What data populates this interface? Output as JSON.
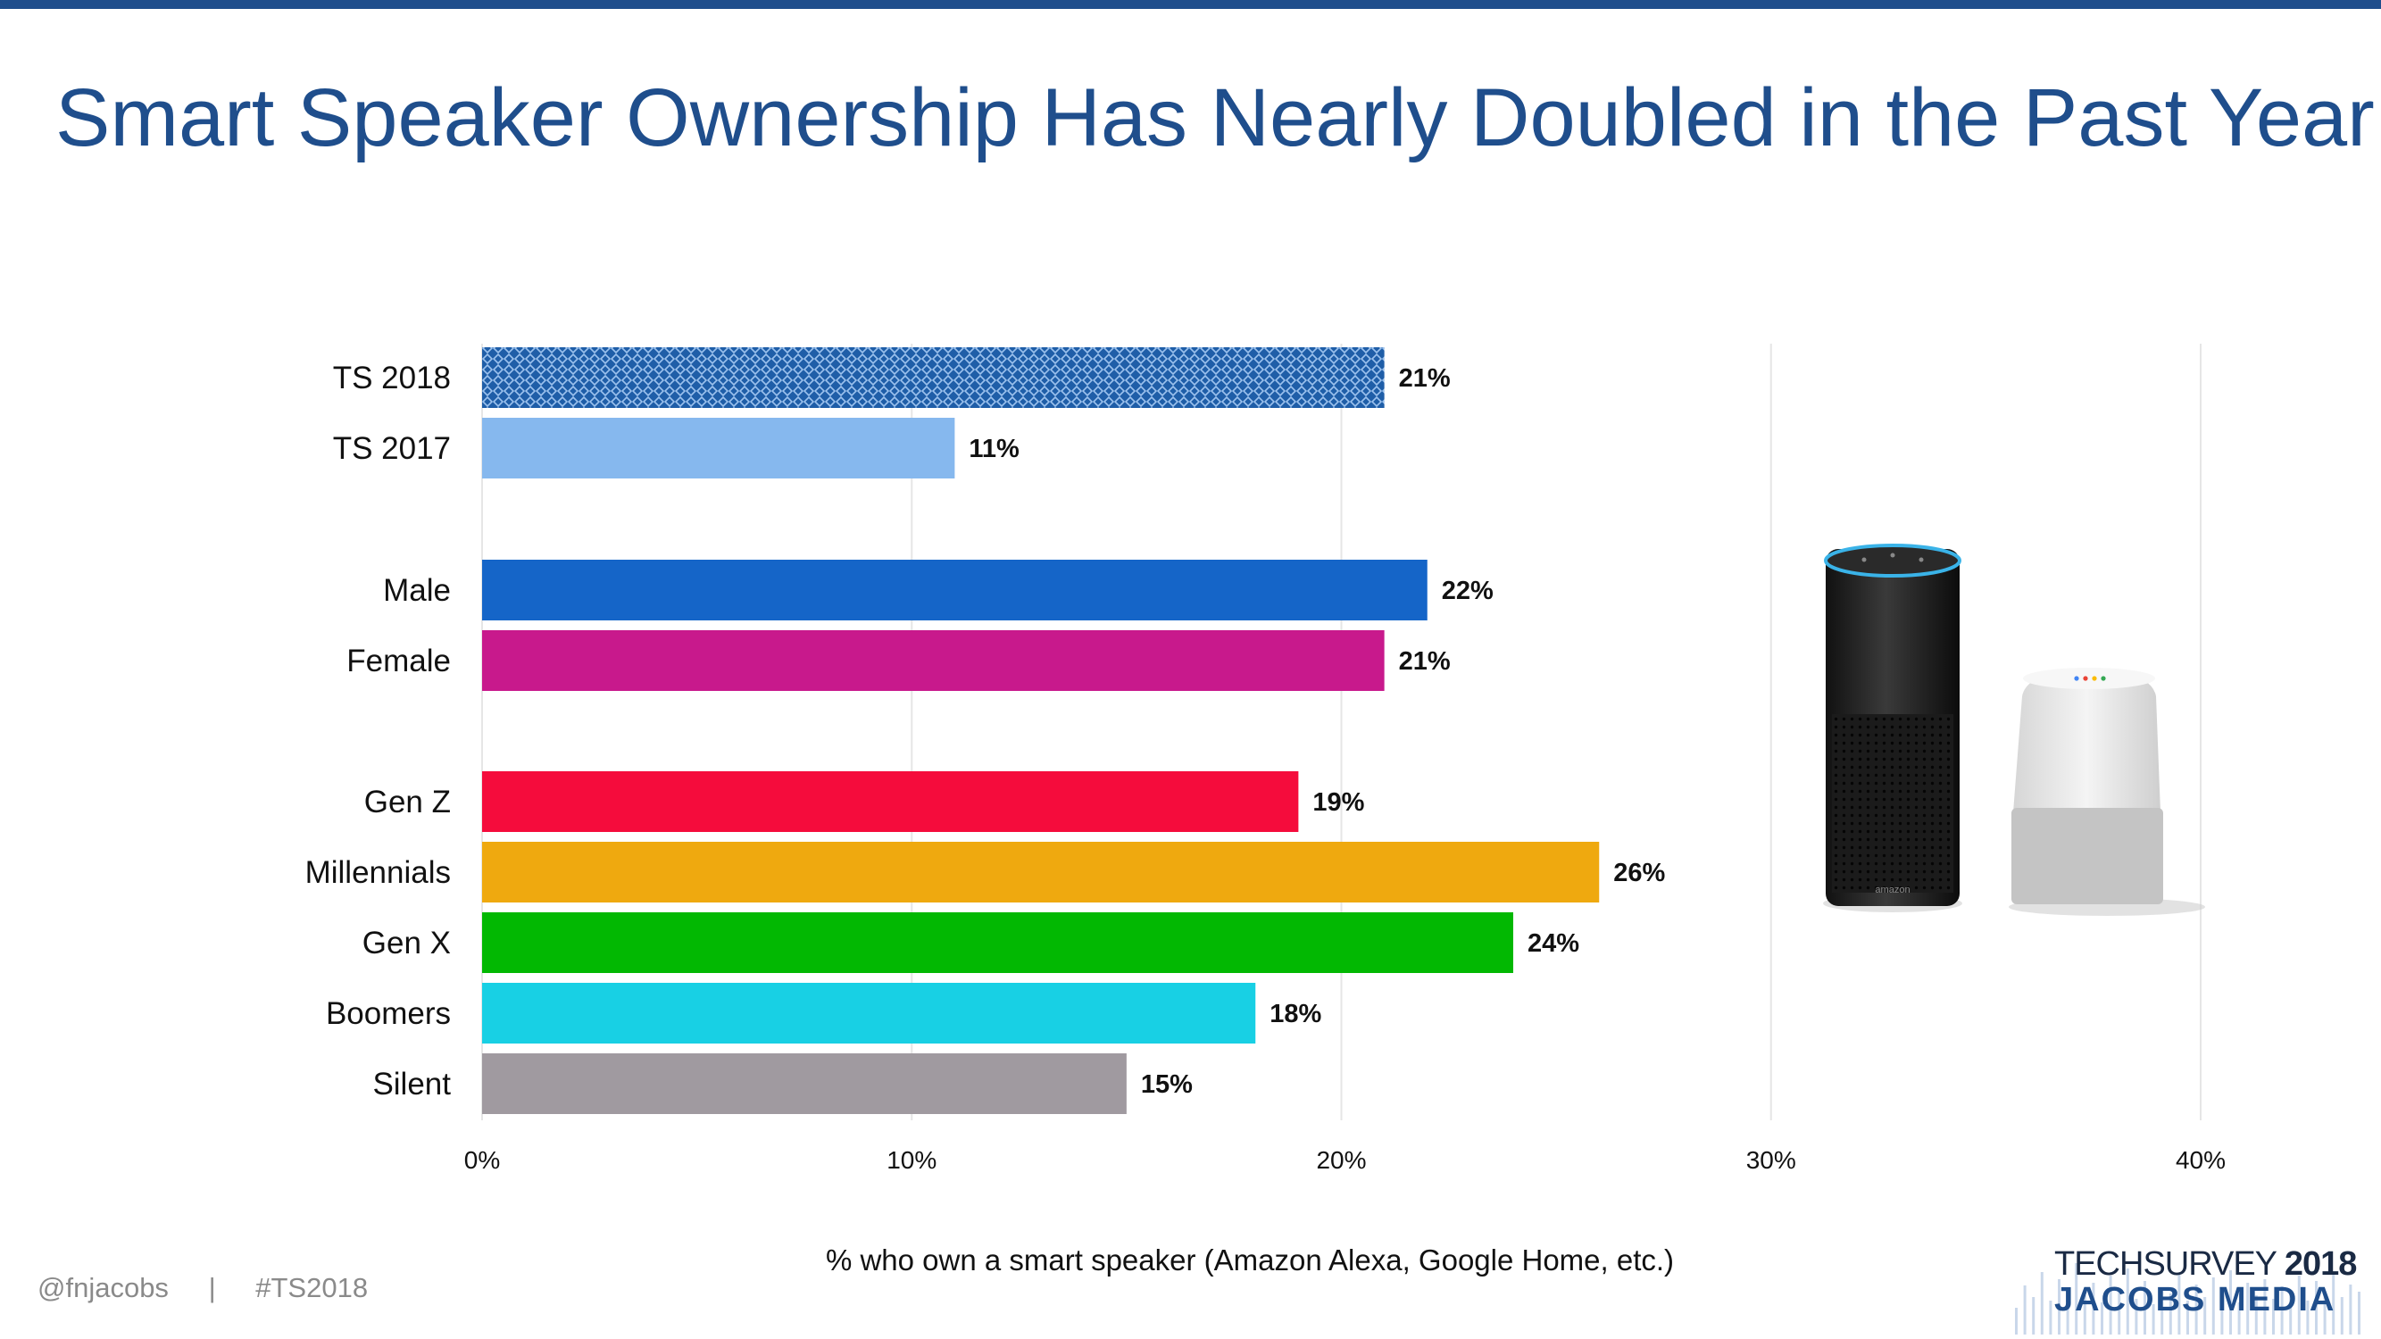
{
  "title": "Smart Speaker Ownership Has Nearly Doubled in the Past Year",
  "chart_data": {
    "type": "bar",
    "orientation": "horizontal",
    "categories": [
      "TS 2018",
      "TS 2017",
      "Male",
      "Female",
      "Gen Z",
      "Millennials",
      "Gen X",
      "Boomers",
      "Silent"
    ],
    "values": [
      21,
      11,
      22,
      21,
      19,
      26,
      24,
      18,
      15
    ],
    "value_labels": [
      "21%",
      "11%",
      "22%",
      "21%",
      "19%",
      "26%",
      "24%",
      "18%",
      "15%"
    ],
    "bar_colors": [
      "#1f5ea8",
      "#86b8ee",
      "#1565c8",
      "#c8198c",
      "#f50c3c",
      "#efa90f",
      "#02b802",
      "#18d0e4",
      "#a09aa0"
    ],
    "patterned": [
      true,
      false,
      false,
      false,
      false,
      false,
      false,
      false,
      false
    ],
    "groups": [
      [
        "TS 2018",
        "TS 2017"
      ],
      [
        "Male",
        "Female"
      ],
      [
        "Gen Z",
        "Millennials",
        "Gen X",
        "Boomers",
        "Silent"
      ]
    ],
    "xlim": [
      0,
      40
    ],
    "xticks": [
      0,
      10,
      20,
      30,
      40
    ],
    "xtick_labels": [
      "0%",
      "10%",
      "20%",
      "30%",
      "40%"
    ],
    "xlabel": "% who own a smart speaker (Amazon Alexa, Google Home, etc.)",
    "gridlines": true
  },
  "footer": {
    "handle": "@fnjacobs",
    "separator": "|",
    "hashtag": "#TS2018"
  },
  "logo": {
    "line1_a": "TECHSURVEY ",
    "line1_b": "2018",
    "line2": "JACOBS MEDIA"
  },
  "product_image": {
    "echo_label": "amazon"
  },
  "colors": {
    "brand_blue": "#1f4e8c",
    "gridline": "#e6e6e6"
  }
}
